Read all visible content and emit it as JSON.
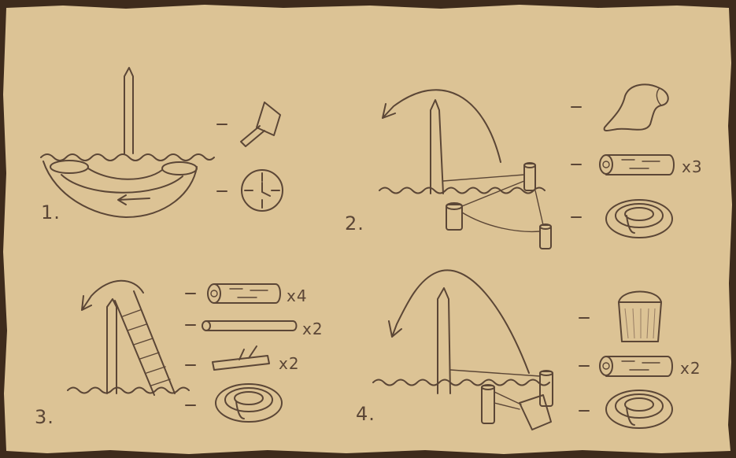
{
  "colors": {
    "parchment": "#dcc395",
    "ink": "#5b4636",
    "border": "#3e2b1c"
  },
  "steps": [
    {
      "number": "1.",
      "icons": [
        "shovel-icon",
        "clock-icon"
      ]
    },
    {
      "number": "2.",
      "icons": [
        "cloth-icon",
        "log-icon",
        "rope-coil-icon"
      ],
      "multipliers": [
        "x3"
      ]
    },
    {
      "number": "3.",
      "icons": [
        "log-icon",
        "pole-icon",
        "branch-icon",
        "rope-coil-icon"
      ],
      "multipliers": [
        "x4",
        "x2",
        "x2"
      ]
    },
    {
      "number": "4.",
      "icons": [
        "bucket-icon",
        "log-icon",
        "rope-coil-icon"
      ],
      "multipliers": [
        "x2"
      ]
    }
  ]
}
